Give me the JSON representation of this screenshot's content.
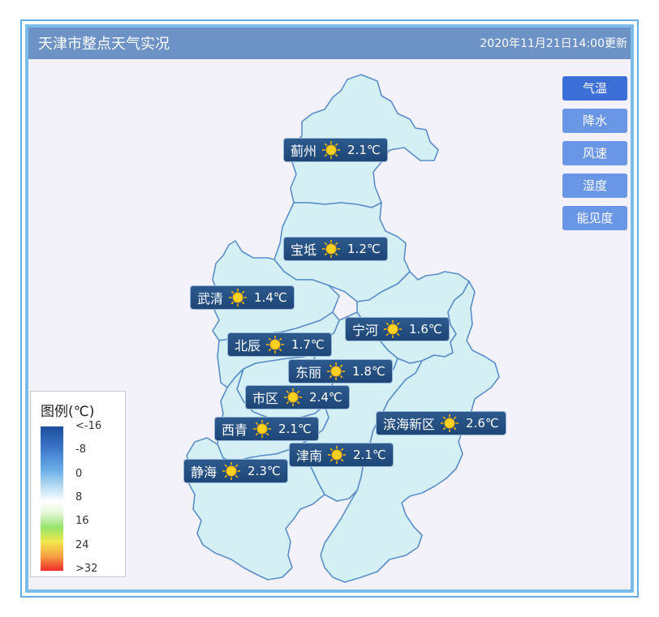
{
  "header": {
    "title": "天津市整点天气实况",
    "updated": "2020年11月21日14:00更新"
  },
  "tabs": [
    {
      "label": "气温",
      "active": true
    },
    {
      "label": "降水",
      "active": false
    },
    {
      "label": "风速",
      "active": false
    },
    {
      "label": "湿度",
      "active": false
    },
    {
      "label": "能见度",
      "active": false
    }
  ],
  "stations": [
    {
      "name": "蓟州",
      "weather": "sun-icon",
      "temp": "2.1℃"
    },
    {
      "name": "宝坻",
      "weather": "sun-icon",
      "temp": "1.2℃"
    },
    {
      "name": "武清",
      "weather": "sun-icon",
      "temp": "1.4℃"
    },
    {
      "name": "宁河",
      "weather": "sun-icon",
      "temp": "1.6℃"
    },
    {
      "name": "北辰",
      "weather": "sun-icon",
      "temp": "1.7℃"
    },
    {
      "name": "东丽",
      "weather": "sun-icon",
      "temp": "1.8℃"
    },
    {
      "name": "市区",
      "weather": "sun-icon",
      "temp": "2.4℃"
    },
    {
      "name": "滨海新区",
      "weather": "sun-icon",
      "temp": "2.6℃"
    },
    {
      "name": "西青",
      "weather": "sun-icon",
      "temp": "2.1℃"
    },
    {
      "name": "津南",
      "weather": "sun-icon",
      "temp": "2.1℃"
    },
    {
      "name": "静海",
      "weather": "sun-icon",
      "temp": "2.3℃"
    }
  ],
  "legend": {
    "title": "图例(℃)",
    "labels": [
      "<-16",
      "-8",
      "0",
      "8",
      "16",
      "24",
      ">32"
    ],
    "colors": [
      "#1c4d9b",
      "#6aaee6",
      "#ffffff",
      "#96e36a",
      "#f2e74c",
      "#f02b2b"
    ]
  },
  "colors": {
    "title_bar": "#6c92c6",
    "map_fill": "#d4f0f4",
    "map_border": "#5b8fc9",
    "active_tab": "#3c6fd8",
    "tab": "#6a96e6",
    "station_label": "#24507f"
  }
}
